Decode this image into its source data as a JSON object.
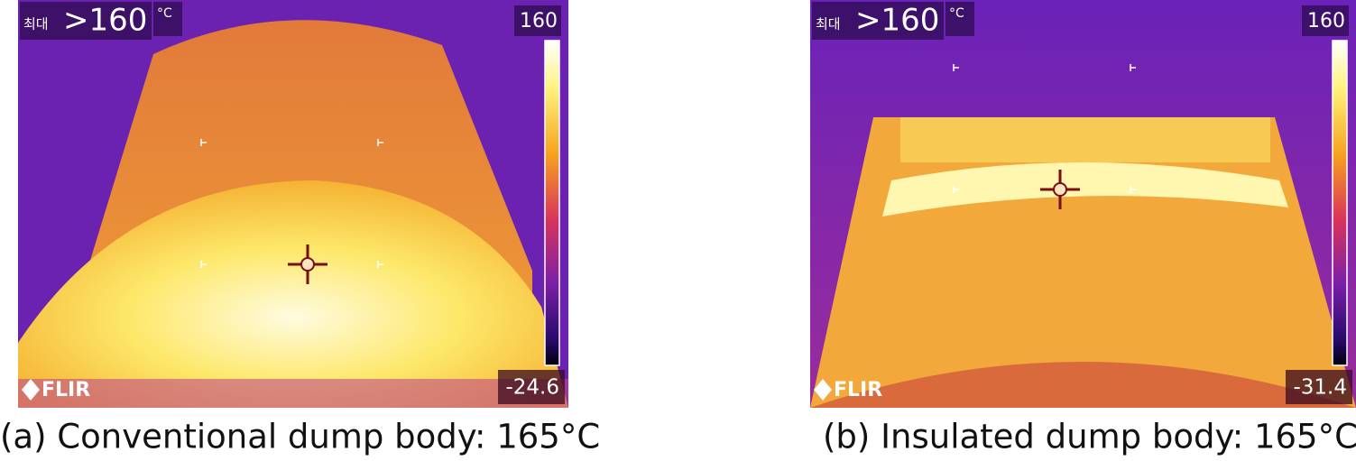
{
  "panels": [
    {
      "max_label": "최대",
      "max_value": ">160",
      "unit": "°C",
      "scale_top": "160",
      "scale_bottom": "-24.6",
      "logo": "FLIR",
      "caption": "(a) Conventional dump body: 165°C"
    },
    {
      "max_label": "최대",
      "max_value": ">160",
      "unit": "°C",
      "scale_top": "160",
      "scale_bottom": "-31.4",
      "logo": "FLIR",
      "caption": "(b) Insulated dump body: 165°C"
    }
  ]
}
